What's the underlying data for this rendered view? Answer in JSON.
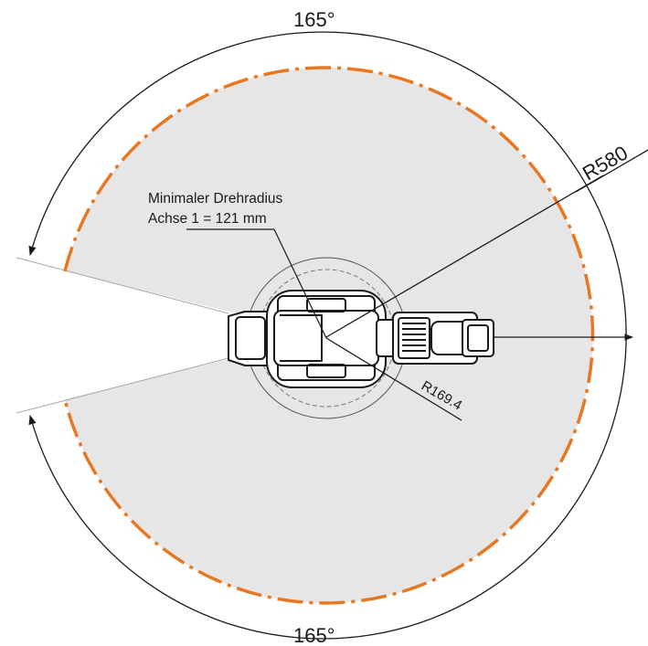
{
  "labels": {
    "angle_top": "165°",
    "angle_bottom": "165°",
    "outer_radius": "R580",
    "inner_radius": "R169.4",
    "min_radius_line1": "Minimaler Drehradius",
    "min_radius_line2": "Achse 1 = 121 mm"
  },
  "colors": {
    "workspace_fill": "#e6e6e6",
    "reach_boundary": "#e87722",
    "lines": "#1a1a1a"
  }
}
